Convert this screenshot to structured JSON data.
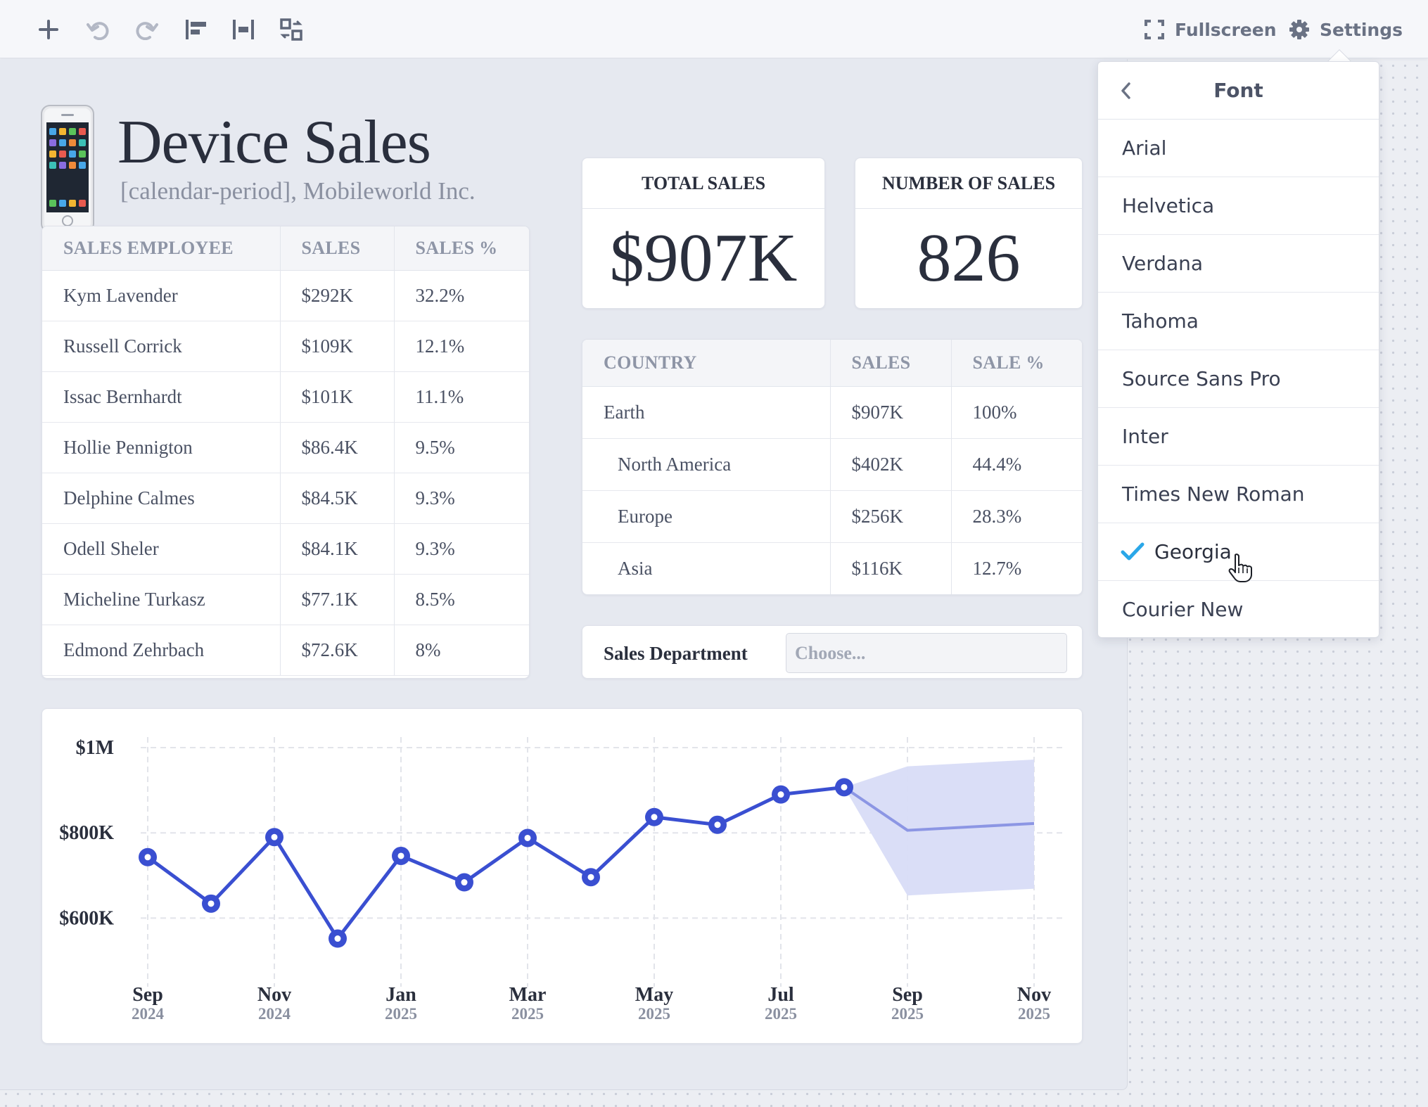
{
  "toolbar": {
    "buttons": [
      {
        "name": "add-icon"
      },
      {
        "name": "undo-icon"
      },
      {
        "name": "redo-icon"
      },
      {
        "name": "align-left-icon"
      },
      {
        "name": "distribute-icon"
      },
      {
        "name": "swap-layout-icon"
      }
    ],
    "fullscreen_label": "Fullscreen",
    "settings_label": "Settings"
  },
  "header": {
    "title": "Device Sales",
    "subtitle": "[calendar-period], Mobileworld Inc."
  },
  "employees": {
    "columns": [
      "SALES EMPLOYEE",
      "SALES",
      "SALES %"
    ],
    "rows": [
      [
        "Kym Lavender",
        "$292K",
        "32.2%"
      ],
      [
        "Russell Corrick",
        "$109K",
        "12.1%"
      ],
      [
        "Issac Bernhardt",
        "$101K",
        "11.1%"
      ],
      [
        "Hollie Pennigton",
        "$86.4K",
        "9.5%"
      ],
      [
        "Delphine Calmes",
        "$84.5K",
        "9.3%"
      ],
      [
        "Odell Sheler",
        "$84.1K",
        "9.3%"
      ],
      [
        "Micheline Turkasz",
        "$77.1K",
        "8.5%"
      ],
      [
        "Edmond Zehrbach",
        "$72.6K",
        "8%"
      ]
    ]
  },
  "kpis": {
    "total_sales": {
      "label": "TOTAL SALES",
      "value": "$907K"
    },
    "number_of_sales": {
      "label": "NUMBER OF SALES",
      "value": "826"
    }
  },
  "countries": {
    "columns": [
      "COUNTRY",
      "SALES",
      "SALE %"
    ],
    "rows": [
      [
        "Earth",
        "$907K",
        "100%"
      ],
      [
        "North America",
        "$402K",
        "44.4%"
      ],
      [
        "Europe",
        "$256K",
        "28.3%"
      ],
      [
        "Asia",
        "$116K",
        "12.7%"
      ]
    ]
  },
  "filter": {
    "label": "Sales Department",
    "placeholder": "Choose..."
  },
  "font_menu": {
    "title": "Font",
    "items": [
      "Arial",
      "Helvetica",
      "Verdana",
      "Tahoma",
      "Source Sans Pro",
      "Inter",
      "Times New Roman",
      "Georgia",
      "Courier New"
    ],
    "selected": "Georgia"
  },
  "colors": {
    "accent": "#3a4fd1",
    "forecast_band": "#d8dcf7",
    "check": "#2aa7e8"
  },
  "chart_data": {
    "type": "line",
    "x": [
      "2024-09",
      "2024-10",
      "2024-11",
      "2024-12",
      "2025-01",
      "2025-02",
      "2025-03",
      "2025-04",
      "2025-05",
      "2025-06",
      "2025-07",
      "2025-08"
    ],
    "series": [
      {
        "values": [
          743,
          634,
          790,
          552,
          746,
          684,
          788,
          696,
          837,
          819,
          890,
          907
        ]
      }
    ],
    "forecast": {
      "x": [
        "2025-08",
        "2025-09",
        "2025-11"
      ],
      "values": [
        907,
        806,
        822
      ],
      "lower": [
        907,
        653,
        669
      ],
      "upper": [
        907,
        956,
        972
      ]
    },
    "x_ticks": [
      {
        "month": "Sep",
        "year": "2024"
      },
      {
        "month": "Nov",
        "year": "2024"
      },
      {
        "month": "Jan",
        "year": "2025"
      },
      {
        "month": "Mar",
        "year": "2025"
      },
      {
        "month": "May",
        "year": "2025"
      },
      {
        "month": "Jul",
        "year": "2025"
      },
      {
        "month": "Sep",
        "year": "2025"
      },
      {
        "month": "Nov",
        "year": "2025"
      }
    ],
    "y_ticks": [
      {
        "value": 1000,
        "label": "$1M"
      },
      {
        "value": 800,
        "label": "$800K"
      },
      {
        "value": 600,
        "label": "$600K"
      }
    ],
    "ylim": [
      505,
      1000
    ],
    "grid": true
  }
}
